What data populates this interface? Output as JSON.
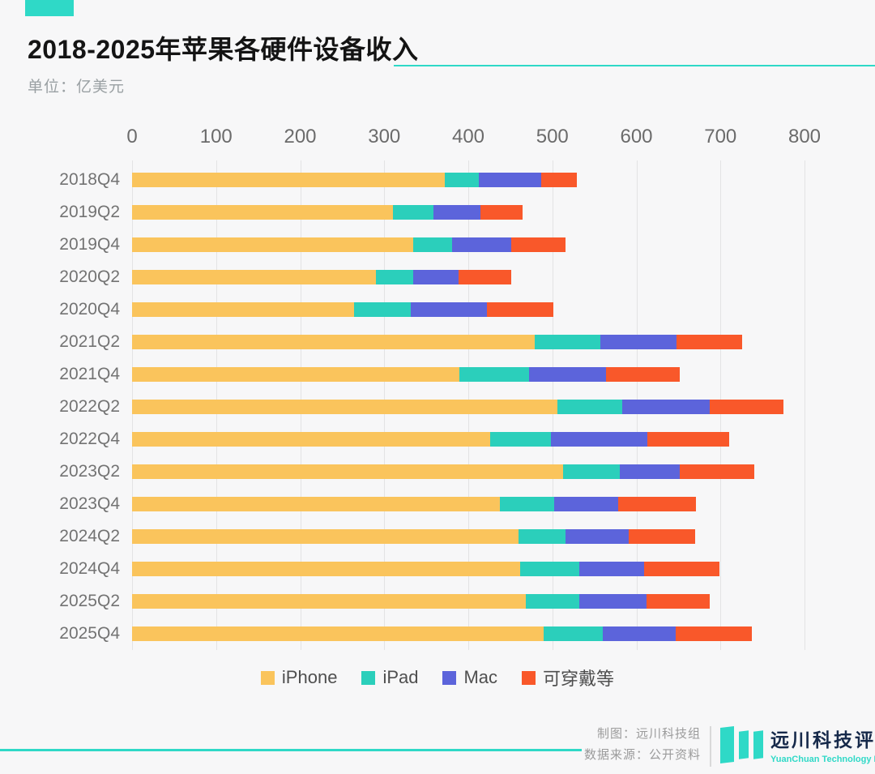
{
  "colors": {
    "accent_teal": "#2FD9C7",
    "background": "#f7f7f8",
    "gridline": "#e3e3e4",
    "iphone": "#FAC45C",
    "ipad": "#2BCFBB",
    "mac": "#5C64DB",
    "wearables": "#F9582A",
    "logo_navy": "#16294a"
  },
  "header": {
    "title": "2018-2025年苹果各硬件设备收入",
    "subtitle": "单位：亿美元"
  },
  "chart_data": {
    "type": "bar",
    "orientation": "horizontal",
    "stacked": true,
    "unit": "亿美元",
    "x_axis": {
      "position": "top",
      "ticks": [
        0,
        100,
        200,
        300,
        400,
        500,
        600,
        700,
        800
      ],
      "range": [
        0,
        800
      ]
    },
    "grid": true,
    "legend_position": "bottom",
    "categories": [
      "2018Q4",
      "2019Q2",
      "2019Q4",
      "2020Q2",
      "2020Q4",
      "2021Q2",
      "2021Q4",
      "2022Q2",
      "2022Q4",
      "2023Q2",
      "2023Q4",
      "2024Q2",
      "2024Q4",
      "2025Q2",
      "2025Q4"
    ],
    "series": [
      {
        "name": "iPhone",
        "color": "#FAC45C",
        "values": [
          372,
          310,
          334,
          290,
          264,
          479,
          389,
          506,
          426,
          513,
          438,
          460,
          462,
          468,
          490
        ]
      },
      {
        "name": "iPad",
        "color": "#2BCFBB",
        "values": [
          41,
          49,
          47,
          44,
          68,
          78,
          83,
          77,
          72,
          67,
          64,
          56,
          70,
          64,
          70
        ]
      },
      {
        "name": "Mac",
        "color": "#5C64DB",
        "values": [
          74,
          55,
          70,
          54,
          90,
          91,
          92,
          104,
          115,
          72,
          76,
          75,
          77,
          80,
          87
        ]
      },
      {
        "name": "可穿戴等",
        "color": "#F9582A",
        "values": [
          42,
          51,
          65,
          63,
          79,
          78,
          88,
          88,
          97,
          88,
          93,
          79,
          90,
          75,
          90
        ]
      }
    ]
  },
  "footer": {
    "credit_line1": "制图：远川科技组",
    "credit_line2": "数据来源：公开资料",
    "logo_cn": "远川科技评论",
    "logo_en": "YuanChuan Technology Review"
  }
}
